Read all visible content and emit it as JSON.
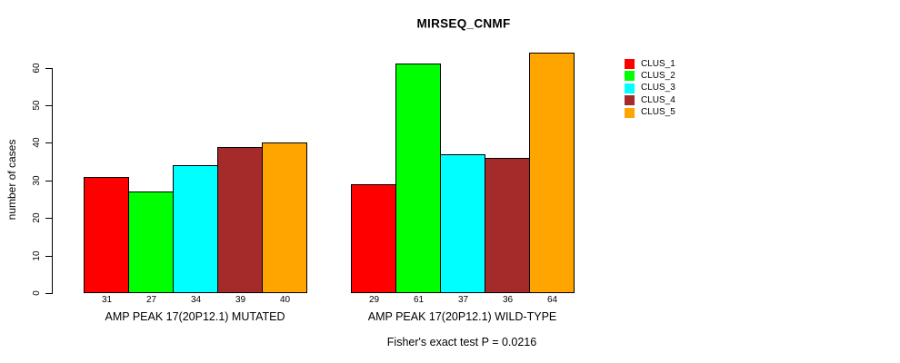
{
  "title": "MIRSEQ_CNMF",
  "y_axis": {
    "label": "number of cases"
  },
  "footer": "Fisher's exact test P = 0.0216",
  "chart_data": {
    "type": "bar",
    "title": "MIRSEQ_CNMF",
    "xlabel": "",
    "ylabel": "number of cases",
    "ylim": [
      0,
      60
    ],
    "yticks": [
      0,
      10,
      20,
      30,
      40,
      50,
      60
    ],
    "categories": [
      "AMP PEAK 17(20P12.1) MUTATED",
      "AMP PEAK 17(20P12.1) WILD-TYPE"
    ],
    "series": [
      {
        "name": "CLUS_1",
        "color": "#FF0000",
        "values": [
          31,
          29
        ]
      },
      {
        "name": "CLUS_2",
        "color": "#00FF00",
        "values": [
          27,
          61
        ]
      },
      {
        "name": "CLUS_3",
        "color": "#00FFFF",
        "values": [
          34,
          37
        ]
      },
      {
        "name": "CLUS_4",
        "color": "#A52A2A",
        "values": [
          39,
          36
        ]
      },
      {
        "name": "CLUS_5",
        "color": "#FFA500",
        "values": [
          40,
          64
        ]
      }
    ],
    "bar_value_labels": true,
    "annotation": "Fisher's exact test P = 0.0216",
    "legend_position": "right",
    "grid": false
  }
}
